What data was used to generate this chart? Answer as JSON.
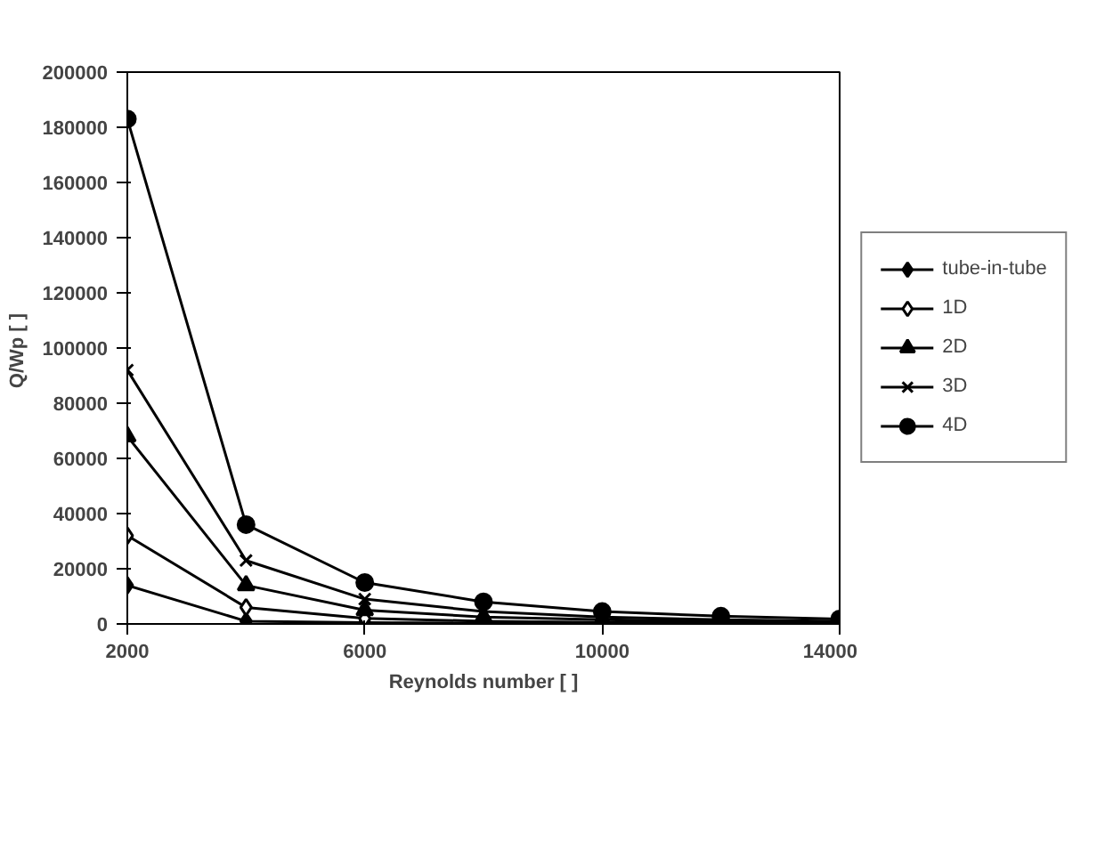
{
  "chart_data": {
    "type": "line",
    "xlabel": "Reynolds number [ ]",
    "ylabel": "Q/Wp  [ ]",
    "x": [
      2000,
      4000,
      6000,
      8000,
      10000,
      12000,
      14000
    ],
    "xlim": [
      2000,
      14000
    ],
    "xticks": [
      2000,
      6000,
      10000,
      14000
    ],
    "ylim": [
      0,
      200000
    ],
    "yticks": [
      0,
      20000,
      40000,
      60000,
      80000,
      100000,
      120000,
      140000,
      160000,
      180000,
      200000
    ],
    "grid": false,
    "legend": "right",
    "series": [
      {
        "name": "tube-in-tube",
        "color": "#000000",
        "marker": "diamond",
        "values": [
          14000,
          1000,
          500,
          300,
          200,
          100,
          100
        ]
      },
      {
        "name": "1D",
        "color": "#000000",
        "marker": "diamond_open",
        "values": [
          32000,
          6000,
          2000,
          1000,
          600,
          400,
          300
        ]
      },
      {
        "name": "2D",
        "color": "#000000",
        "marker": "triangle",
        "values": [
          68000,
          14000,
          5000,
          2500,
          1500,
          900,
          600
        ]
      },
      {
        "name": "3D",
        "color": "#000000",
        "marker": "x",
        "values": [
          92000,
          23000,
          9000,
          4500,
          2500,
          1500,
          1000
        ]
      },
      {
        "name": "4D",
        "color": "#000000",
        "marker": "circle",
        "values": [
          183000,
          36000,
          15000,
          8000,
          4500,
          2800,
          1800
        ]
      }
    ]
  }
}
